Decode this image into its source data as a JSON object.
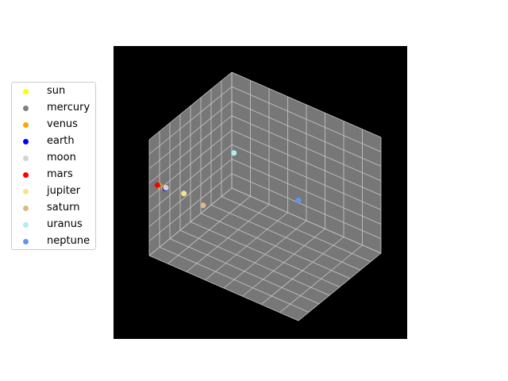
{
  "chart_data": {
    "type": "scatter",
    "projection": "3d",
    "background": "#000000",
    "pane_color": "#777777",
    "grid": true,
    "axis_tick_labels": false,
    "legend_position": "left",
    "xlim": [
      0,
      1
    ],
    "ylim": [
      0,
      1
    ],
    "zlim": [
      0,
      1
    ],
    "series": [
      {
        "name": "sun",
        "color": "#ffff00",
        "x": 0.02,
        "y": 0.1,
        "z": 0.55
      },
      {
        "name": "mercury",
        "color": "#808080",
        "x": 0.03,
        "y": 0.1,
        "z": 0.55
      },
      {
        "name": "venus",
        "color": "#ffa500",
        "x": 0.04,
        "y": 0.1,
        "z": 0.55
      },
      {
        "name": "earth",
        "color": "#0000ff",
        "x": 0.05,
        "y": 0.1,
        "z": 0.55
      },
      {
        "name": "moon",
        "color": "#d3d3d3",
        "x": 0.05,
        "y": 0.11,
        "z": 0.55
      },
      {
        "name": "mars",
        "color": "#ff0000",
        "x": 0.0,
        "y": 0.1,
        "z": 0.55
      },
      {
        "name": "jupiter",
        "color": "#f0e68c",
        "x": 0.16,
        "y": 0.13,
        "z": 0.55
      },
      {
        "name": "saturn",
        "color": "#deb887",
        "x": 0.24,
        "y": 0.22,
        "z": 0.44
      },
      {
        "name": "uranus",
        "color": "#afeeee",
        "x": 0.28,
        "y": 0.52,
        "z": 0.74
      },
      {
        "name": "neptune",
        "color": "#6495ed",
        "x": 0.58,
        "y": 0.76,
        "z": 0.36
      }
    ]
  }
}
